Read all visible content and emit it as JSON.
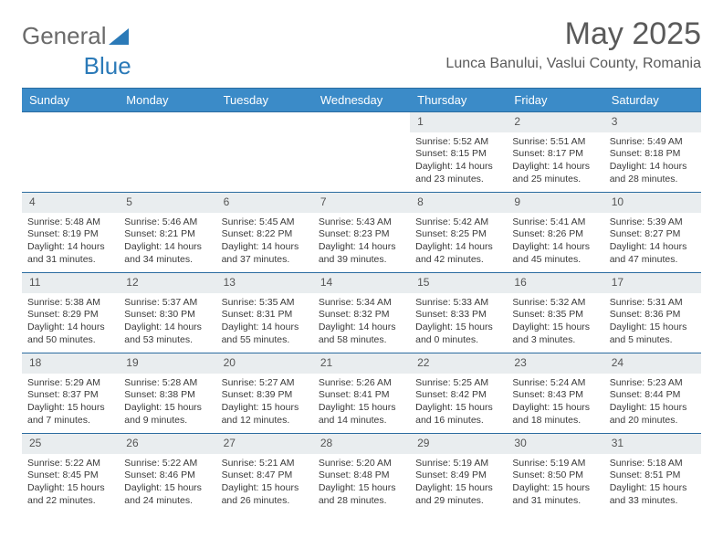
{
  "logo": {
    "text_a": "General",
    "text_b": "Blue"
  },
  "title": "May 2025",
  "location": "Lunca Banului, Vaslui County, Romania",
  "colors": {
    "header_bg": "#3b8bc8",
    "header_text": "#ffffff",
    "row_divider": "#2b6ca0",
    "daynum_bg": "#e9edef",
    "body_text": "#3a3a3a",
    "title_text": "#5a5a5a"
  },
  "typography": {
    "title_fontsize": 34,
    "location_fontsize": 16,
    "dayheader_fontsize": 13,
    "cell_fontsize": 10.5
  },
  "dayHeaders": [
    "Sunday",
    "Monday",
    "Tuesday",
    "Wednesday",
    "Thursday",
    "Friday",
    "Saturday"
  ],
  "weeks": [
    [
      {
        "n": ""
      },
      {
        "n": ""
      },
      {
        "n": ""
      },
      {
        "n": ""
      },
      {
        "n": "1",
        "sr": "5:52 AM",
        "ss": "8:15 PM",
        "dl": "14 hours and 23 minutes."
      },
      {
        "n": "2",
        "sr": "5:51 AM",
        "ss": "8:17 PM",
        "dl": "14 hours and 25 minutes."
      },
      {
        "n": "3",
        "sr": "5:49 AM",
        "ss": "8:18 PM",
        "dl": "14 hours and 28 minutes."
      }
    ],
    [
      {
        "n": "4",
        "sr": "5:48 AM",
        "ss": "8:19 PM",
        "dl": "14 hours and 31 minutes."
      },
      {
        "n": "5",
        "sr": "5:46 AM",
        "ss": "8:21 PM",
        "dl": "14 hours and 34 minutes."
      },
      {
        "n": "6",
        "sr": "5:45 AM",
        "ss": "8:22 PM",
        "dl": "14 hours and 37 minutes."
      },
      {
        "n": "7",
        "sr": "5:43 AM",
        "ss": "8:23 PM",
        "dl": "14 hours and 39 minutes."
      },
      {
        "n": "8",
        "sr": "5:42 AM",
        "ss": "8:25 PM",
        "dl": "14 hours and 42 minutes."
      },
      {
        "n": "9",
        "sr": "5:41 AM",
        "ss": "8:26 PM",
        "dl": "14 hours and 45 minutes."
      },
      {
        "n": "10",
        "sr": "5:39 AM",
        "ss": "8:27 PM",
        "dl": "14 hours and 47 minutes."
      }
    ],
    [
      {
        "n": "11",
        "sr": "5:38 AM",
        "ss": "8:29 PM",
        "dl": "14 hours and 50 minutes."
      },
      {
        "n": "12",
        "sr": "5:37 AM",
        "ss": "8:30 PM",
        "dl": "14 hours and 53 minutes."
      },
      {
        "n": "13",
        "sr": "5:35 AM",
        "ss": "8:31 PM",
        "dl": "14 hours and 55 minutes."
      },
      {
        "n": "14",
        "sr": "5:34 AM",
        "ss": "8:32 PM",
        "dl": "14 hours and 58 minutes."
      },
      {
        "n": "15",
        "sr": "5:33 AM",
        "ss": "8:33 PM",
        "dl": "15 hours and 0 minutes."
      },
      {
        "n": "16",
        "sr": "5:32 AM",
        "ss": "8:35 PM",
        "dl": "15 hours and 3 minutes."
      },
      {
        "n": "17",
        "sr": "5:31 AM",
        "ss": "8:36 PM",
        "dl": "15 hours and 5 minutes."
      }
    ],
    [
      {
        "n": "18",
        "sr": "5:29 AM",
        "ss": "8:37 PM",
        "dl": "15 hours and 7 minutes."
      },
      {
        "n": "19",
        "sr": "5:28 AM",
        "ss": "8:38 PM",
        "dl": "15 hours and 9 minutes."
      },
      {
        "n": "20",
        "sr": "5:27 AM",
        "ss": "8:39 PM",
        "dl": "15 hours and 12 minutes."
      },
      {
        "n": "21",
        "sr": "5:26 AM",
        "ss": "8:41 PM",
        "dl": "15 hours and 14 minutes."
      },
      {
        "n": "22",
        "sr": "5:25 AM",
        "ss": "8:42 PM",
        "dl": "15 hours and 16 minutes."
      },
      {
        "n": "23",
        "sr": "5:24 AM",
        "ss": "8:43 PM",
        "dl": "15 hours and 18 minutes."
      },
      {
        "n": "24",
        "sr": "5:23 AM",
        "ss": "8:44 PM",
        "dl": "15 hours and 20 minutes."
      }
    ],
    [
      {
        "n": "25",
        "sr": "5:22 AM",
        "ss": "8:45 PM",
        "dl": "15 hours and 22 minutes."
      },
      {
        "n": "26",
        "sr": "5:22 AM",
        "ss": "8:46 PM",
        "dl": "15 hours and 24 minutes."
      },
      {
        "n": "27",
        "sr": "5:21 AM",
        "ss": "8:47 PM",
        "dl": "15 hours and 26 minutes."
      },
      {
        "n": "28",
        "sr": "5:20 AM",
        "ss": "8:48 PM",
        "dl": "15 hours and 28 minutes."
      },
      {
        "n": "29",
        "sr": "5:19 AM",
        "ss": "8:49 PM",
        "dl": "15 hours and 29 minutes."
      },
      {
        "n": "30",
        "sr": "5:19 AM",
        "ss": "8:50 PM",
        "dl": "15 hours and 31 minutes."
      },
      {
        "n": "31",
        "sr": "5:18 AM",
        "ss": "8:51 PM",
        "dl": "15 hours and 33 minutes."
      }
    ]
  ],
  "labels": {
    "sunrise": "Sunrise: ",
    "sunset": "Sunset: ",
    "daylight": "Daylight: "
  }
}
